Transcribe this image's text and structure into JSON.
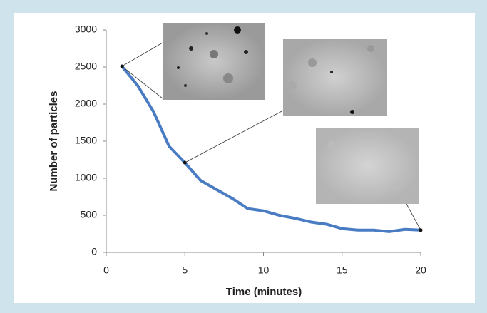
{
  "chart_data": {
    "type": "line",
    "xlabel": "Time (minutes)",
    "ylabel": "Number of particles",
    "x": [
      1,
      2,
      3,
      4,
      5,
      6,
      7,
      8,
      9,
      10,
      11,
      12,
      13,
      14,
      15,
      16,
      17,
      18,
      19,
      20
    ],
    "series": [
      {
        "color": "#4a7cc4",
        "values": [
          2510,
          2250,
          1900,
          1430,
          1210,
          970,
          850,
          730,
          590,
          560,
          500,
          460,
          410,
          380,
          320,
          300,
          300,
          280,
          310,
          300
        ]
      }
    ],
    "xlim": [
      0,
      20
    ],
    "xticks": [
      0,
      5,
      10,
      15,
      20
    ],
    "ylim": [
      0,
      3000
    ],
    "yticks": [
      0,
      500,
      1000,
      1500,
      2000,
      2500,
      3000
    ],
    "grid": false
  }
}
